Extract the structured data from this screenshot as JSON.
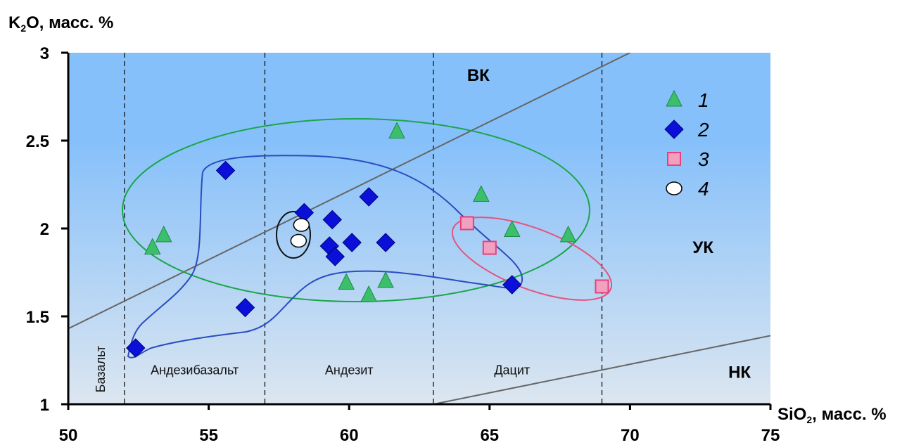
{
  "chart_data": {
    "type": "scatter",
    "xlabel_main": "SiO",
    "xlabel_sub": "2",
    "xlabel_tail": ", масс. %",
    "ylabel_main": "K",
    "ylabel_sub": "2",
    "ylabel_tail": "O, масс. %",
    "xlim": [
      50,
      75
    ],
    "ylim": [
      1,
      3
    ],
    "x_ticks": [
      50,
      55,
      60,
      65,
      70,
      75
    ],
    "y_ticks": [
      1,
      1.5,
      2,
      2.5,
      3
    ],
    "x_tick_labels": [
      "50",
      "55",
      "60",
      "65",
      "70",
      "75"
    ],
    "y_tick_labels": [
      "1",
      "1.5",
      "2",
      "2.5",
      "3"
    ],
    "grid": false,
    "legend_position": "top-right",
    "colors": {
      "background_top": "#86c0fa",
      "background_bottom": "#dce6f0",
      "series1": "#3cbf6a",
      "series2": "#0a10d8",
      "series3": "#f2a0c0",
      "series3_edge": "#e8407a",
      "series4": "#ffffff",
      "ellipse_green": "#1aa64a",
      "ellipse_pink": "#e4557f",
      "contour_blue": "#2a4dbf",
      "contour_black": "#111111",
      "boundary_lines": "#666666"
    },
    "vertical_dividers": [
      52,
      57,
      63,
      69
    ],
    "field_labels": [
      {
        "text": "Базальт",
        "x": 51.3,
        "y": 1.2,
        "rotate": true
      },
      {
        "text": "Андезибазальт",
        "x": 54.5,
        "y": 1.17
      },
      {
        "text": "Андезит",
        "x": 60.0,
        "y": 1.17
      },
      {
        "text": "Дацит",
        "x": 65.8,
        "y": 1.17
      }
    ],
    "series_labels": [
      {
        "text": "ВК",
        "x": 64.6,
        "y": 2.84
      },
      {
        "text": "УК",
        "x": 72.6,
        "y": 1.86
      },
      {
        "text": "НК",
        "x": 73.9,
        "y": 1.15
      }
    ],
    "boundaries": [
      {
        "name": "hk-ck",
        "points": [
          [
            50,
            1.43
          ],
          [
            70,
            3.0
          ]
        ]
      },
      {
        "name": "ck-lk",
        "points": [
          [
            63,
            1.0
          ],
          [
            75,
            1.39
          ]
        ]
      }
    ],
    "series": [
      {
        "name": "1",
        "marker": "triangle",
        "points": [
          [
            53.0,
            1.89
          ],
          [
            53.4,
            1.96
          ],
          [
            59.9,
            1.69
          ],
          [
            60.7,
            1.62
          ],
          [
            61.3,
            1.7
          ],
          [
            61.7,
            2.55
          ],
          [
            64.7,
            2.19
          ],
          [
            65.8,
            1.99
          ],
          [
            67.8,
            1.96
          ]
        ]
      },
      {
        "name": "2",
        "marker": "diamond",
        "points": [
          [
            52.4,
            1.32
          ],
          [
            55.6,
            2.33
          ],
          [
            56.3,
            1.55
          ],
          [
            58.4,
            2.09
          ],
          [
            59.3,
            1.9
          ],
          [
            59.4,
            2.05
          ],
          [
            59.5,
            1.84
          ],
          [
            60.1,
            1.92
          ],
          [
            60.7,
            2.18
          ],
          [
            61.3,
            1.92
          ],
          [
            65.8,
            1.68
          ]
        ]
      },
      {
        "name": "3",
        "marker": "square",
        "points": [
          [
            64.2,
            2.03
          ],
          [
            65.0,
            1.89
          ],
          [
            69.0,
            1.67
          ]
        ]
      },
      {
        "name": "4",
        "marker": "circle",
        "points": [
          [
            58.3,
            2.02
          ],
          [
            58.2,
            1.93
          ]
        ]
      }
    ]
  }
}
